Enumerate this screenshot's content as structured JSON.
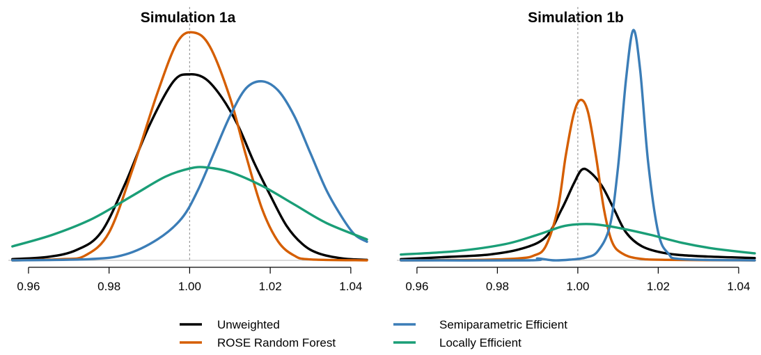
{
  "chart_data": [
    {
      "type": "line",
      "title": "Simulation 1a",
      "xlabel": "",
      "ylabel": "",
      "xlim": [
        0.955,
        1.044
      ],
      "ylim": [
        0,
        1.0
      ],
      "xticks": [
        "0.96",
        "0.98",
        "1.00",
        "1.02",
        "1.04"
      ],
      "tick_values": [
        0.96,
        0.98,
        1.0,
        1.02,
        1.04
      ],
      "reference_line_x": 1.0,
      "series": [
        {
          "name": "Unweighted",
          "color": "#000000",
          "points": [
            [
              0.956,
              0.005
            ],
            [
              0.965,
              0.015
            ],
            [
              0.972,
              0.045
            ],
            [
              0.978,
              0.12
            ],
            [
              0.984,
              0.33
            ],
            [
              0.99,
              0.58
            ],
            [
              0.996,
              0.77
            ],
            [
              1.0,
              0.8
            ],
            [
              1.004,
              0.78
            ],
            [
              1.008,
              0.7
            ],
            [
              1.012,
              0.58
            ],
            [
              1.016,
              0.42
            ],
            [
              1.02,
              0.28
            ],
            [
              1.024,
              0.15
            ],
            [
              1.028,
              0.07
            ],
            [
              1.032,
              0.03
            ],
            [
              1.038,
              0.008
            ],
            [
              1.044,
              0.002
            ]
          ]
        },
        {
          "name": "ROSE Random Forest",
          "color": "#D55E00",
          "points": [
            [
              0.956,
              0.0
            ],
            [
              0.968,
              0.005
            ],
            [
              0.974,
              0.02
            ],
            [
              0.98,
              0.12
            ],
            [
              0.986,
              0.4
            ],
            [
              0.992,
              0.72
            ],
            [
              0.997,
              0.94
            ],
            [
              1.001,
              0.98
            ],
            [
              1.005,
              0.92
            ],
            [
              1.01,
              0.7
            ],
            [
              1.014,
              0.45
            ],
            [
              1.018,
              0.22
            ],
            [
              1.022,
              0.08
            ],
            [
              1.026,
              0.02
            ],
            [
              1.03,
              0.004
            ],
            [
              1.044,
              0.0
            ]
          ]
        },
        {
          "name": "Semiparametric Efficient",
          "color": "#3B7DB7",
          "points": [
            [
              0.956,
              0.0
            ],
            [
              0.975,
              0.005
            ],
            [
              0.984,
              0.025
            ],
            [
              0.992,
              0.09
            ],
            [
              0.998,
              0.18
            ],
            [
              1.002,
              0.3
            ],
            [
              1.006,
              0.46
            ],
            [
              1.01,
              0.62
            ],
            [
              1.014,
              0.74
            ],
            [
              1.018,
              0.77
            ],
            [
              1.022,
              0.73
            ],
            [
              1.026,
              0.62
            ],
            [
              1.03,
              0.46
            ],
            [
              1.034,
              0.3
            ],
            [
              1.038,
              0.18
            ],
            [
              1.041,
              0.11
            ],
            [
              1.044,
              0.08
            ]
          ]
        },
        {
          "name": "Locally Efficient",
          "color": "#1A9E77",
          "points": [
            [
              0.956,
              0.06
            ],
            [
              0.966,
              0.11
            ],
            [
              0.976,
              0.18
            ],
            [
              0.986,
              0.28
            ],
            [
              0.994,
              0.36
            ],
            [
              1.0,
              0.395
            ],
            [
              1.004,
              0.4
            ],
            [
              1.01,
              0.38
            ],
            [
              1.018,
              0.32
            ],
            [
              1.026,
              0.24
            ],
            [
              1.034,
              0.16
            ],
            [
              1.044,
              0.09
            ]
          ]
        }
      ]
    },
    {
      "type": "line",
      "title": "Simulation 1b",
      "xlabel": "",
      "ylabel": "",
      "xlim": [
        0.955,
        1.044
      ],
      "ylim": [
        0,
        1.0
      ],
      "xticks": [
        "0.96",
        "0.98",
        "1.00",
        "1.02",
        "1.04"
      ],
      "tick_values": [
        0.96,
        0.98,
        1.0,
        1.02,
        1.04
      ],
      "reference_line_x": 1.0,
      "series": [
        {
          "name": "Unweighted",
          "color": "#000000",
          "points": [
            [
              0.956,
              0.005
            ],
            [
              0.968,
              0.015
            ],
            [
              0.978,
              0.025
            ],
            [
              0.986,
              0.05
            ],
            [
              0.992,
              0.1
            ],
            [
              0.996,
              0.22
            ],
            [
              0.999,
              0.33
            ],
            [
              1.001,
              0.39
            ],
            [
              1.003,
              0.38
            ],
            [
              1.006,
              0.32
            ],
            [
              1.009,
              0.22
            ],
            [
              1.012,
              0.12
            ],
            [
              1.016,
              0.06
            ],
            [
              1.022,
              0.03
            ],
            [
              1.03,
              0.018
            ],
            [
              1.044,
              0.01
            ]
          ]
        },
        {
          "name": "ROSE Random Forest",
          "color": "#D55E00",
          "points": [
            [
              0.956,
              0.0
            ],
            [
              0.975,
              0.002
            ],
            [
              0.985,
              0.008
            ],
            [
              0.989,
              0.02
            ],
            [
              0.992,
              0.06
            ],
            [
              0.995,
              0.22
            ],
            [
              0.997,
              0.45
            ],
            [
              0.999,
              0.63
            ],
            [
              1.0007,
              0.69
            ],
            [
              1.0025,
              0.64
            ],
            [
              1.0045,
              0.45
            ],
            [
              1.0065,
              0.22
            ],
            [
              1.0085,
              0.08
            ],
            [
              1.011,
              0.03
            ],
            [
              1.015,
              0.008
            ],
            [
              1.022,
              0.002
            ],
            [
              1.044,
              0.0
            ]
          ]
        },
        {
          "name": "Semiparametric Efficient",
          "color": "#3B7DB7",
          "points": [
            [
              0.956,
              0.0
            ],
            [
              0.988,
              0.0
            ],
            [
              0.99,
              0.008
            ],
            [
              0.994,
              0.0
            ],
            [
              0.998,
              0.003
            ],
            [
              1.002,
              0.012
            ],
            [
              1.005,
              0.04
            ],
            [
              1.008,
              0.15
            ],
            [
              1.01,
              0.4
            ],
            [
              1.012,
              0.78
            ],
            [
              1.0138,
              0.99
            ],
            [
              1.0155,
              0.82
            ],
            [
              1.0175,
              0.42
            ],
            [
              1.02,
              0.12
            ],
            [
              1.0225,
              0.03
            ],
            [
              1.026,
              0.005
            ],
            [
              1.044,
              0.0
            ]
          ]
        },
        {
          "name": "Locally Efficient",
          "color": "#1A9E77",
          "points": [
            [
              0.956,
              0.025
            ],
            [
              0.97,
              0.04
            ],
            [
              0.982,
              0.07
            ],
            [
              0.99,
              0.11
            ],
            [
              0.996,
              0.145
            ],
            [
              1.0,
              0.155
            ],
            [
              1.004,
              0.155
            ],
            [
              1.01,
              0.14
            ],
            [
              1.018,
              0.11
            ],
            [
              1.026,
              0.075
            ],
            [
              1.034,
              0.05
            ],
            [
              1.044,
              0.03
            ]
          ]
        }
      ]
    }
  ],
  "legend": [
    {
      "label": "Unweighted",
      "color": "#000000"
    },
    {
      "label": "ROSE Random Forest",
      "color": "#D55E00"
    },
    {
      "label": "Semiparametric Efficient",
      "color": "#3B7DB7"
    },
    {
      "label": "Locally Efficient",
      "color": "#1A9E77"
    }
  ]
}
